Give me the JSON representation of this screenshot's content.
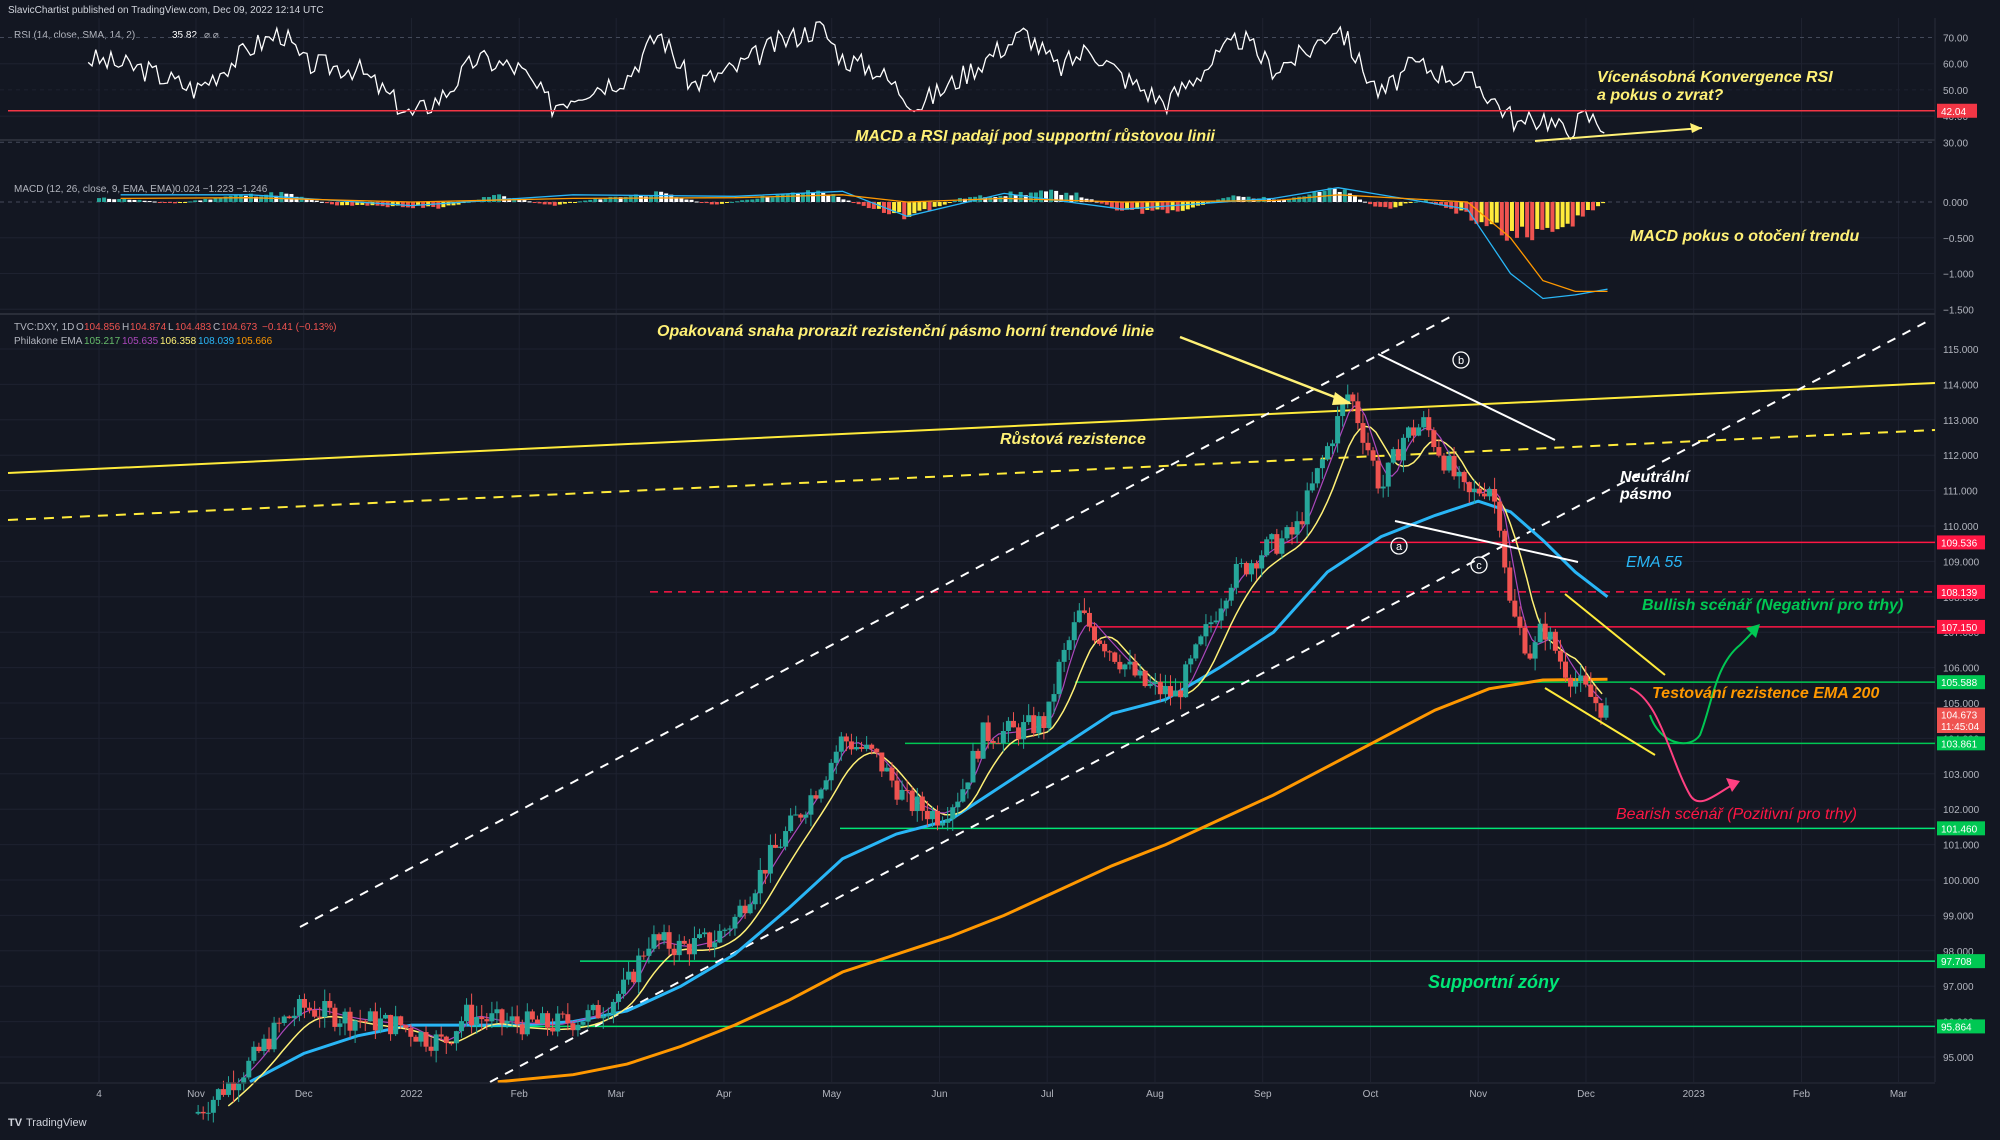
{
  "header": {
    "publisher": "SlavicChartist published on TradingView.com, Dec 09, 2022 12:14 UTC"
  },
  "footer": {
    "brand": "TradingView"
  },
  "colors": {
    "background": "#131722",
    "grid": "#1e2230",
    "text": "#b2b5be",
    "bull": "#26a69a",
    "bear": "#ef5350",
    "ema55": "#29b6f6",
    "ema200": "#ff9800",
    "yellow": "#fff176",
    "support": "#00e676",
    "resistance": "#ff1744",
    "annotation_bear": "#ff4081",
    "annotation_bull": "#00c853"
  },
  "x_axis": {
    "labels": [
      "4",
      "Nov",
      "Dec",
      "2022",
      "Feb",
      "Mar",
      "Apr",
      "May",
      "Jun",
      "Jul",
      "Aug",
      "Sep",
      "Oct",
      "Nov",
      "Dec",
      "2023",
      "Feb",
      "Mar"
    ],
    "positions_months": [
      0.1,
      1.0,
      2.0,
      3.0,
      4.0,
      4.9,
      5.9,
      6.9,
      7.9,
      8.9,
      9.9,
      10.9,
      11.9,
      12.9,
      13.9,
      14.9,
      15.9,
      16.8
    ]
  },
  "rsi_panel": {
    "legend": "RSI (14, close, SMA, 14, 2)",
    "last_value": "35.82",
    "legend_extra": "⌀  ⌀",
    "levels": [
      "70.00",
      "60.00",
      "50.00",
      "40.00",
      "30.00"
    ],
    "level_values": [
      70,
      60,
      50,
      40,
      30
    ],
    "red_line_label": "42.04",
    "red_line_value": 42.04
  },
  "macd_panel": {
    "legend": "MACD (12, 26, close, 9, EMA, EMA)",
    "values": "0.024  −1.223  −1.246",
    "levels": [
      "0.000",
      "−0.500",
      "−1.000",
      "−1.500"
    ],
    "level_values": [
      0,
      -0.5,
      -1.0,
      -1.5
    ]
  },
  "price_panel": {
    "symbol_legend": "TVC:DXY, 1D",
    "ohlc": {
      "o_label": "O",
      "o": "104.856",
      "h_label": "H",
      "h": "104.874",
      "l_label": "L",
      "l": "104.483",
      "c_label": "C",
      "c": "104.673",
      "change": "−0.141 (−0.13%)"
    },
    "ema_legend": "Philakone EMA",
    "ema_values": [
      "105.217",
      "105.635",
      "106.358",
      "108.039",
      "105.666"
    ],
    "ema_colors": [
      "#66bb6a",
      "#ab47bc",
      "#fff176",
      "#29b6f6",
      "#ff9800"
    ],
    "levels": [
      "115.000",
      "114.000",
      "113.000",
      "112.000",
      "111.000",
      "110.000",
      "109.000",
      "108.000",
      "107.000",
      "106.000",
      "105.000",
      "104.000",
      "103.000",
      "102.000",
      "101.000",
      "100.000",
      "99.000",
      "98.000",
      "97.000",
      "96.000",
      "95.000"
    ],
    "level_values": [
      115,
      114,
      113,
      112,
      111,
      110,
      109,
      108,
      107,
      106,
      105,
      104,
      103,
      102,
      101,
      100,
      99,
      98,
      97,
      96,
      95
    ],
    "price_tags": [
      {
        "label": "109.536",
        "value": 109.536,
        "color": "#ff1744"
      },
      {
        "label": "108.139",
        "value": 108.139,
        "color": "#ff1744"
      },
      {
        "label": "107.150",
        "value": 107.15,
        "color": "#ff1744"
      },
      {
        "label": "105.588",
        "value": 105.588,
        "color": "#00c853"
      },
      {
        "label": "104.673",
        "value": 104.673,
        "color": "#ef5350"
      },
      {
        "label": "11:45:04",
        "value": 104.35,
        "color": "#ef5350"
      },
      {
        "label": "103.861",
        "value": 103.861,
        "color": "#00c853"
      },
      {
        "label": "101.460",
        "value": 101.46,
        "color": "#00c853"
      },
      {
        "label": "97.708",
        "value": 97.708,
        "color": "#00c853"
      },
      {
        "label": "95.864",
        "value": 95.864,
        "color": "#00c853"
      }
    ]
  },
  "annotations": {
    "rsi_convergence_1": "Vícenásobná Konvergence RSI",
    "rsi_convergence_2": "a pokus o zvrat?",
    "macd_rsi_break": "MACD a RSI padají pod supportní růstovou linii",
    "macd_reversal": "MACD pokus o otočení trendu",
    "resistance_attempt": "Opakovaná snaha prorazit rezistenční pásmo horní trendové linie",
    "growth_resistance": "Růstová rezistence",
    "neutral_1": "Neutrální",
    "neutral_2": "pásmo",
    "ema55": "EMA 55",
    "bullish": "Bullish scénář (Negativní pro trhy)",
    "ema200_test": "Testování rezistence EMA 200",
    "bearish": "Bearish scénář (Pozitivní pro trhy)",
    "support_zones": "Supportní zóny",
    "wave_a": "a",
    "wave_b": "b",
    "wave_c": "c"
  },
  "chart_data": [
    {
      "type": "candlestick",
      "title": "TVC:DXY, 1D",
      "x_unit": "months since Oct 2021",
      "ylim": [
        94.3,
        115.5
      ],
      "close_path": [
        {
          "x": 1.0,
          "y": 93.4
        },
        {
          "x": 1.5,
          "y": 94.8
        },
        {
          "x": 1.8,
          "y": 96.0
        },
        {
          "x": 2.0,
          "y": 96.4
        },
        {
          "x": 2.4,
          "y": 96.1
        },
        {
          "x": 2.9,
          "y": 95.9
        },
        {
          "x": 3.1,
          "y": 95.6
        },
        {
          "x": 3.3,
          "y": 95.4
        },
        {
          "x": 3.5,
          "y": 96.2
        },
        {
          "x": 3.8,
          "y": 96.0
        },
        {
          "x": 4.3,
          "y": 95.9
        },
        {
          "x": 4.7,
          "y": 96.2
        },
        {
          "x": 5.0,
          "y": 97.0
        },
        {
          "x": 5.2,
          "y": 98.3
        },
        {
          "x": 5.5,
          "y": 98.1
        },
        {
          "x": 5.8,
          "y": 98.3
        },
        {
          "x": 6.0,
          "y": 98.9
        },
        {
          "x": 6.3,
          "y": 100.5
        },
        {
          "x": 6.8,
          "y": 102.8
        },
        {
          "x": 7.0,
          "y": 104.0
        },
        {
          "x": 7.3,
          "y": 103.5
        },
        {
          "x": 7.6,
          "y": 102.2
        },
        {
          "x": 7.9,
          "y": 101.8
        },
        {
          "x": 8.1,
          "y": 102.5
        },
        {
          "x": 8.3,
          "y": 104.1
        },
        {
          "x": 8.6,
          "y": 104.2
        },
        {
          "x": 8.9,
          "y": 104.5
        },
        {
          "x": 9.0,
          "y": 105.9
        },
        {
          "x": 9.2,
          "y": 107.5
        },
        {
          "x": 9.4,
          "y": 106.8
        },
        {
          "x": 9.8,
          "y": 105.5
        },
        {
          "x": 10.1,
          "y": 105.2
        },
        {
          "x": 10.3,
          "y": 106.5
        },
        {
          "x": 10.6,
          "y": 108.5
        },
        {
          "x": 10.9,
          "y": 109.3
        },
        {
          "x": 11.2,
          "y": 109.8
        },
        {
          "x": 11.5,
          "y": 112.2
        },
        {
          "x": 11.7,
          "y": 113.8
        },
        {
          "x": 11.9,
          "y": 112.0
        },
        {
          "x": 12.0,
          "y": 111.0
        },
        {
          "x": 12.2,
          "y": 112.5
        },
        {
          "x": 12.4,
          "y": 112.9
        },
        {
          "x": 12.6,
          "y": 111.8
        },
        {
          "x": 12.8,
          "y": 110.8
        },
        {
          "x": 13.0,
          "y": 111.2
        },
        {
          "x": 13.1,
          "y": 110.2
        },
        {
          "x": 13.2,
          "y": 107.6
        },
        {
          "x": 13.4,
          "y": 106.3
        },
        {
          "x": 13.5,
          "y": 107.2
        },
        {
          "x": 13.7,
          "y": 106.0
        },
        {
          "x": 13.9,
          "y": 105.3
        },
        {
          "x": 14.1,
          "y": 104.7
        }
      ],
      "ema_55": [
        {
          "x": 1.5,
          "y": 94.3
        },
        {
          "x": 2.0,
          "y": 95.1
        },
        {
          "x": 2.5,
          "y": 95.6
        },
        {
          "x": 3.0,
          "y": 95.9
        },
        {
          "x": 3.5,
          "y": 95.9
        },
        {
          "x": 4.0,
          "y": 95.9
        },
        {
          "x": 4.5,
          "y": 96.0
        },
        {
          "x": 5.0,
          "y": 96.3
        },
        {
          "x": 5.5,
          "y": 97.0
        },
        {
          "x": 6.0,
          "y": 97.9
        },
        {
          "x": 6.5,
          "y": 99.2
        },
        {
          "x": 7.0,
          "y": 100.6
        },
        {
          "x": 7.5,
          "y": 101.3
        },
        {
          "x": 8.0,
          "y": 101.7
        },
        {
          "x": 8.5,
          "y": 102.7
        },
        {
          "x": 9.0,
          "y": 103.7
        },
        {
          "x": 9.5,
          "y": 104.7
        },
        {
          "x": 10.0,
          "y": 105.1
        },
        {
          "x": 10.5,
          "y": 106.0
        },
        {
          "x": 11.0,
          "y": 107.0
        },
        {
          "x": 11.5,
          "y": 108.7
        },
        {
          "x": 12.0,
          "y": 109.7
        },
        {
          "x": 12.5,
          "y": 110.3
        },
        {
          "x": 12.9,
          "y": 110.7
        },
        {
          "x": 13.2,
          "y": 110.4
        },
        {
          "x": 13.5,
          "y": 109.6
        },
        {
          "x": 13.8,
          "y": 108.7
        },
        {
          "x": 14.1,
          "y": 108.0
        }
      ],
      "ema_200": [
        {
          "x": 3.8,
          "y": 94.3
        },
        {
          "x": 4.5,
          "y": 94.5
        },
        {
          "x": 5.0,
          "y": 94.8
        },
        {
          "x": 5.5,
          "y": 95.3
        },
        {
          "x": 6.0,
          "y": 95.9
        },
        {
          "x": 6.5,
          "y": 96.6
        },
        {
          "x": 7.0,
          "y": 97.4
        },
        {
          "x": 7.5,
          "y": 97.9
        },
        {
          "x": 8.0,
          "y": 98.4
        },
        {
          "x": 8.5,
          "y": 99.0
        },
        {
          "x": 9.0,
          "y": 99.7
        },
        {
          "x": 9.5,
          "y": 100.4
        },
        {
          "x": 10.0,
          "y": 101.0
        },
        {
          "x": 10.5,
          "y": 101.7
        },
        {
          "x": 11.0,
          "y": 102.4
        },
        {
          "x": 11.5,
          "y": 103.2
        },
        {
          "x": 12.0,
          "y": 104.0
        },
        {
          "x": 12.5,
          "y": 104.8
        },
        {
          "x": 13.0,
          "y": 105.4
        },
        {
          "x": 13.5,
          "y": 105.65
        },
        {
          "x": 14.1,
          "y": 105.67
        }
      ]
    },
    {
      "type": "line",
      "title": "RSI (14, close, SMA, 14, 2)",
      "x_unit": "months since Oct 2021",
      "ylim": [
        28,
        76
      ],
      "values": [
        {
          "x": 0.0,
          "y": 62
        },
        {
          "x": 0.5,
          "y": 58
        },
        {
          "x": 1.0,
          "y": 50
        },
        {
          "x": 1.5,
          "y": 66
        },
        {
          "x": 1.8,
          "y": 72
        },
        {
          "x": 2.0,
          "y": 60
        },
        {
          "x": 2.5,
          "y": 58
        },
        {
          "x": 3.0,
          "y": 40
        },
        {
          "x": 3.3,
          "y": 48
        },
        {
          "x": 3.6,
          "y": 62
        },
        {
          "x": 4.0,
          "y": 58
        },
        {
          "x": 4.3,
          "y": 44
        },
        {
          "x": 4.6,
          "y": 50
        },
        {
          "x": 5.0,
          "y": 55
        },
        {
          "x": 5.3,
          "y": 72
        },
        {
          "x": 5.6,
          "y": 52
        },
        {
          "x": 6.0,
          "y": 58
        },
        {
          "x": 6.4,
          "y": 68
        },
        {
          "x": 6.8,
          "y": 74
        },
        {
          "x": 7.0,
          "y": 62
        },
        {
          "x": 7.3,
          "y": 58
        },
        {
          "x": 7.7,
          "y": 44
        },
        {
          "x": 8.0,
          "y": 52
        },
        {
          "x": 8.4,
          "y": 64
        },
        {
          "x": 8.7,
          "y": 72
        },
        {
          "x": 9.0,
          "y": 58
        },
        {
          "x": 9.3,
          "y": 66
        },
        {
          "x": 9.6,
          "y": 55
        },
        {
          "x": 10.0,
          "y": 45
        },
        {
          "x": 10.3,
          "y": 56
        },
        {
          "x": 10.7,
          "y": 70
        },
        {
          "x": 11.0,
          "y": 58
        },
        {
          "x": 11.3,
          "y": 64
        },
        {
          "x": 11.6,
          "y": 75
        },
        {
          "x": 11.8,
          "y": 60
        },
        {
          "x": 12.0,
          "y": 48
        },
        {
          "x": 12.3,
          "y": 60
        },
        {
          "x": 12.6,
          "y": 56
        },
        {
          "x": 12.9,
          "y": 52
        },
        {
          "x": 13.1,
          "y": 44
        },
        {
          "x": 13.3,
          "y": 36
        },
        {
          "x": 13.5,
          "y": 40
        },
        {
          "x": 13.7,
          "y": 34
        },
        {
          "x": 13.9,
          "y": 40
        },
        {
          "x": 14.1,
          "y": 36
        }
      ],
      "reference_line": 42.04
    },
    {
      "type": "bar",
      "title": "MACD (12, 26, close, 9, EMA, EMA)",
      "x_unit": "months since Oct 2021",
      "ylim": [
        -1.6,
        0.4
      ],
      "histogram": [
        {
          "x": 0.3,
          "y": 0.05
        },
        {
          "x": 0.8,
          "y": -0.02
        },
        {
          "x": 1.3,
          "y": 0.08
        },
        {
          "x": 1.8,
          "y": 0.12
        },
        {
          "x": 2.3,
          "y": -0.04
        },
        {
          "x": 2.8,
          "y": -0.06
        },
        {
          "x": 3.3,
          "y": -0.08
        },
        {
          "x": 3.8,
          "y": 0.1
        },
        {
          "x": 4.3,
          "y": -0.05
        },
        {
          "x": 4.8,
          "y": 0.06
        },
        {
          "x": 5.3,
          "y": 0.12
        },
        {
          "x": 5.8,
          "y": -0.04
        },
        {
          "x": 6.3,
          "y": 0.08
        },
        {
          "x": 6.8,
          "y": 0.15
        },
        {
          "x": 7.3,
          "y": -0.1
        },
        {
          "x": 7.6,
          "y": -0.22
        },
        {
          "x": 8.1,
          "y": 0.05
        },
        {
          "x": 8.6,
          "y": 0.12
        },
        {
          "x": 9.1,
          "y": 0.14
        },
        {
          "x": 9.6,
          "y": -0.12
        },
        {
          "x": 10.1,
          "y": -0.15
        },
        {
          "x": 10.6,
          "y": 0.08
        },
        {
          "x": 11.1,
          "y": 0.04
        },
        {
          "x": 11.6,
          "y": 0.18
        },
        {
          "x": 12.0,
          "y": -0.1
        },
        {
          "x": 12.4,
          "y": 0.03
        },
        {
          "x": 12.8,
          "y": -0.2
        },
        {
          "x": 13.2,
          "y": -0.45
        },
        {
          "x": 13.5,
          "y": -0.55
        },
        {
          "x": 13.8,
          "y": -0.25
        },
        {
          "x": 14.1,
          "y": 0.02
        }
      ],
      "macd_line": [
        {
          "x": 0.3,
          "y": 0.1
        },
        {
          "x": 1.5,
          "y": 0.1
        },
        {
          "x": 3.0,
          "y": -0.05
        },
        {
          "x": 4.5,
          "y": 0.1
        },
        {
          "x": 6.0,
          "y": 0.08
        },
        {
          "x": 7.0,
          "y": 0.15
        },
        {
          "x": 7.6,
          "y": -0.2
        },
        {
          "x": 8.5,
          "y": 0.12
        },
        {
          "x": 9.6,
          "y": -0.1
        },
        {
          "x": 11.0,
          "y": 0.05
        },
        {
          "x": 11.6,
          "y": 0.2
        },
        {
          "x": 12.2,
          "y": 0.05
        },
        {
          "x": 12.8,
          "y": -0.1
        },
        {
          "x": 13.2,
          "y": -1.0
        },
        {
          "x": 13.5,
          "y": -1.35
        },
        {
          "x": 13.8,
          "y": -1.3
        },
        {
          "x": 14.1,
          "y": -1.22
        }
      ],
      "signal_line": [
        {
          "x": 0.3,
          "y": 0.05
        },
        {
          "x": 1.5,
          "y": 0.06
        },
        {
          "x": 3.0,
          "y": 0.0
        },
        {
          "x": 4.5,
          "y": 0.05
        },
        {
          "x": 6.0,
          "y": 0.06
        },
        {
          "x": 7.0,
          "y": 0.1
        },
        {
          "x": 7.6,
          "y": 0.0
        },
        {
          "x": 8.5,
          "y": 0.05
        },
        {
          "x": 9.6,
          "y": 0.0
        },
        {
          "x": 11.0,
          "y": 0.02
        },
        {
          "x": 11.6,
          "y": 0.1
        },
        {
          "x": 12.2,
          "y": 0.05
        },
        {
          "x": 12.8,
          "y": 0.0
        },
        {
          "x": 13.2,
          "y": -0.5
        },
        {
          "x": 13.5,
          "y": -1.1
        },
        {
          "x": 13.8,
          "y": -1.25
        },
        {
          "x": 14.1,
          "y": -1.25
        }
      ]
    }
  ]
}
